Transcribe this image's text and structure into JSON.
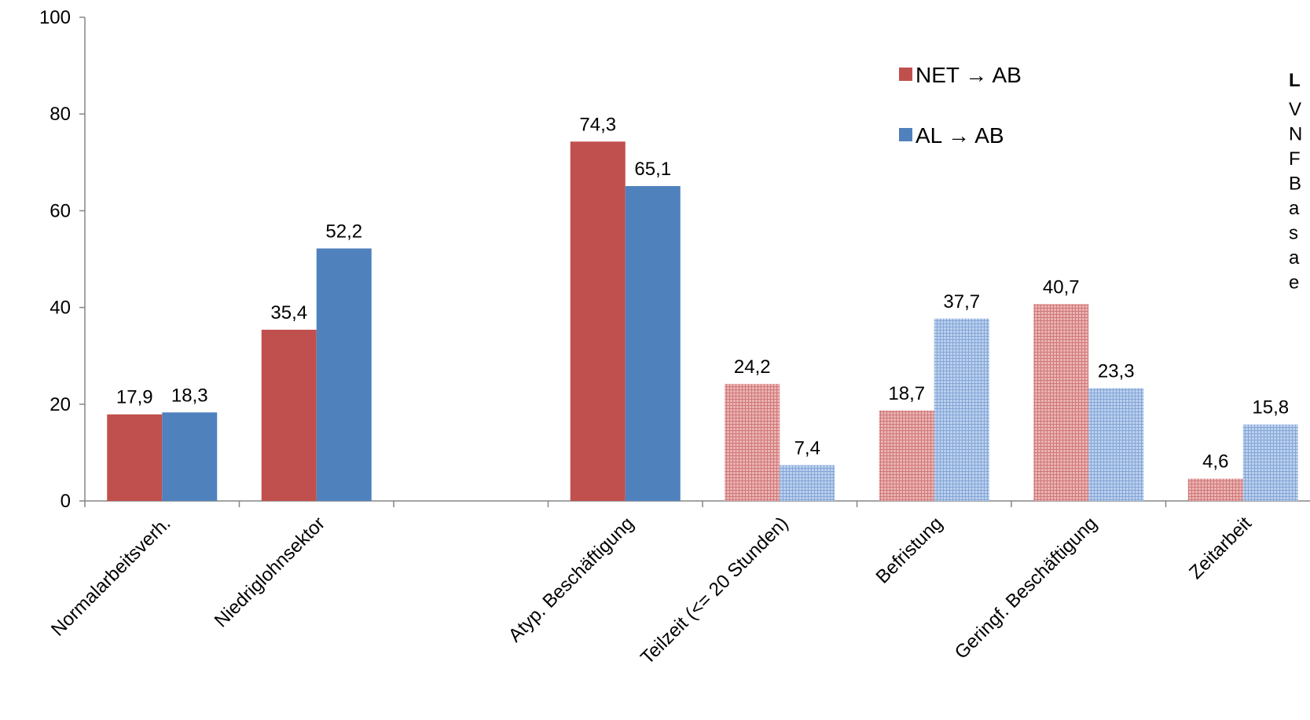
{
  "chart_data": {
    "type": "bar",
    "categories": [
      "Normalarbeitsverh.",
      "Niedriglohnsektor",
      "",
      "Atyp. Beschäftigung",
      "Teilzeit (<= 20 Stunden)",
      "Befristung",
      "Geringf. Beschäftigung",
      "Zeitarbeit"
    ],
    "series": [
      {
        "name": "NET → AB",
        "values": [
          17.9,
          35.4,
          null,
          74.3,
          24.2,
          18.7,
          40.7,
          4.6
        ],
        "labels": [
          "17,9",
          "35,4",
          "",
          "74,3",
          "24,2",
          "18,7",
          "40,7",
          "4,6"
        ],
        "color": "#C0504D",
        "light_color": "#E6A3A3"
      },
      {
        "name": "AL → AB",
        "values": [
          18.3,
          52.2,
          null,
          65.1,
          7.4,
          37.7,
          23.3,
          15.8
        ],
        "labels": [
          "18,3",
          "52,2",
          "",
          "65,1",
          "7,4",
          "37,7",
          "23,3",
          "15,8"
        ],
        "color": "#4F81BD",
        "light_color": "#A9C1E6"
      }
    ],
    "hatched_categories": [
      4,
      5,
      6,
      7
    ],
    "ylim": [
      0,
      100
    ],
    "yticks": [
      0,
      20,
      40,
      60,
      80,
      100
    ],
    "grid": false,
    "legend_position": "top-right",
    "title": "",
    "xlabel": "",
    "ylabel": ""
  },
  "side_note": {
    "title": "L",
    "lines": [
      "V",
      "N",
      "F",
      "B",
      "a",
      "s",
      "a",
      "e"
    ]
  }
}
